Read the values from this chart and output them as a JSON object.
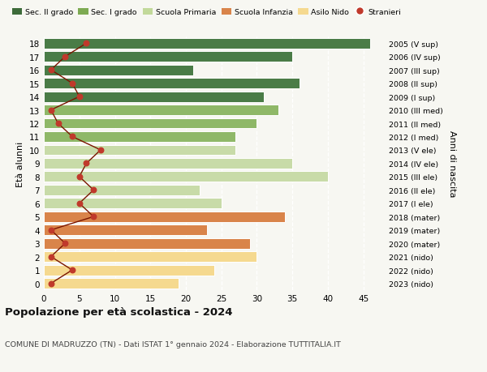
{
  "ages": [
    0,
    1,
    2,
    3,
    4,
    5,
    6,
    7,
    8,
    9,
    10,
    11,
    12,
    13,
    14,
    15,
    16,
    17,
    18
  ],
  "right_labels": [
    "2023 (nido)",
    "2022 (nido)",
    "2021 (nido)",
    "2020 (mater)",
    "2019 (mater)",
    "2018 (mater)",
    "2017 (I ele)",
    "2016 (II ele)",
    "2015 (III ele)",
    "2014 (IV ele)",
    "2013 (V ele)",
    "2012 (I med)",
    "2011 (II med)",
    "2010 (III med)",
    "2009 (I sup)",
    "2008 (II sup)",
    "2007 (III sup)",
    "2006 (IV sup)",
    "2005 (V sup)"
  ],
  "bar_values": [
    19,
    24,
    30,
    29,
    23,
    34,
    25,
    22,
    40,
    35,
    27,
    27,
    30,
    33,
    31,
    36,
    21,
    35,
    46
  ],
  "stranieri": [
    1,
    4,
    1,
    3,
    1,
    7,
    5,
    7,
    5,
    6,
    8,
    4,
    2,
    1,
    5,
    4,
    1,
    3,
    6
  ],
  "bar_colors": [
    "#f5d98f",
    "#f5d98f",
    "#f5d98f",
    "#d9844a",
    "#d9844a",
    "#d9844a",
    "#c8dba8",
    "#c8dba8",
    "#c8dba8",
    "#c8dba8",
    "#c8dba8",
    "#8fb868",
    "#8fb868",
    "#8fb868",
    "#4a7c47",
    "#4a7c47",
    "#4a7c47",
    "#4a7c47",
    "#4a7c47"
  ],
  "legend_labels": [
    "Sec. II grado",
    "Sec. I grado",
    "Scuola Primaria",
    "Scuola Infanzia",
    "Asilo Nido",
    "Stranieri"
  ],
  "legend_colors": [
    "#3d6b3a",
    "#7daa52",
    "#c2d99a",
    "#d9844a",
    "#f5d98f",
    "#c0392b"
  ],
  "title": "Popolazione per età scolastica - 2024",
  "subtitle": "COMUNE DI MADRUZZO (TN) - Dati ISTAT 1° gennaio 2024 - Elaborazione TUTTITALIA.IT",
  "ylabel_left": "Età alunni",
  "ylabel_right": "Anni di nascita",
  "xlim": [
    0,
    48
  ],
  "xticks": [
    0,
    5,
    10,
    15,
    20,
    25,
    30,
    35,
    40,
    45
  ],
  "line_color": "#7a1500",
  "dot_color": "#c0392b",
  "bg_color": "#f7f7f2"
}
